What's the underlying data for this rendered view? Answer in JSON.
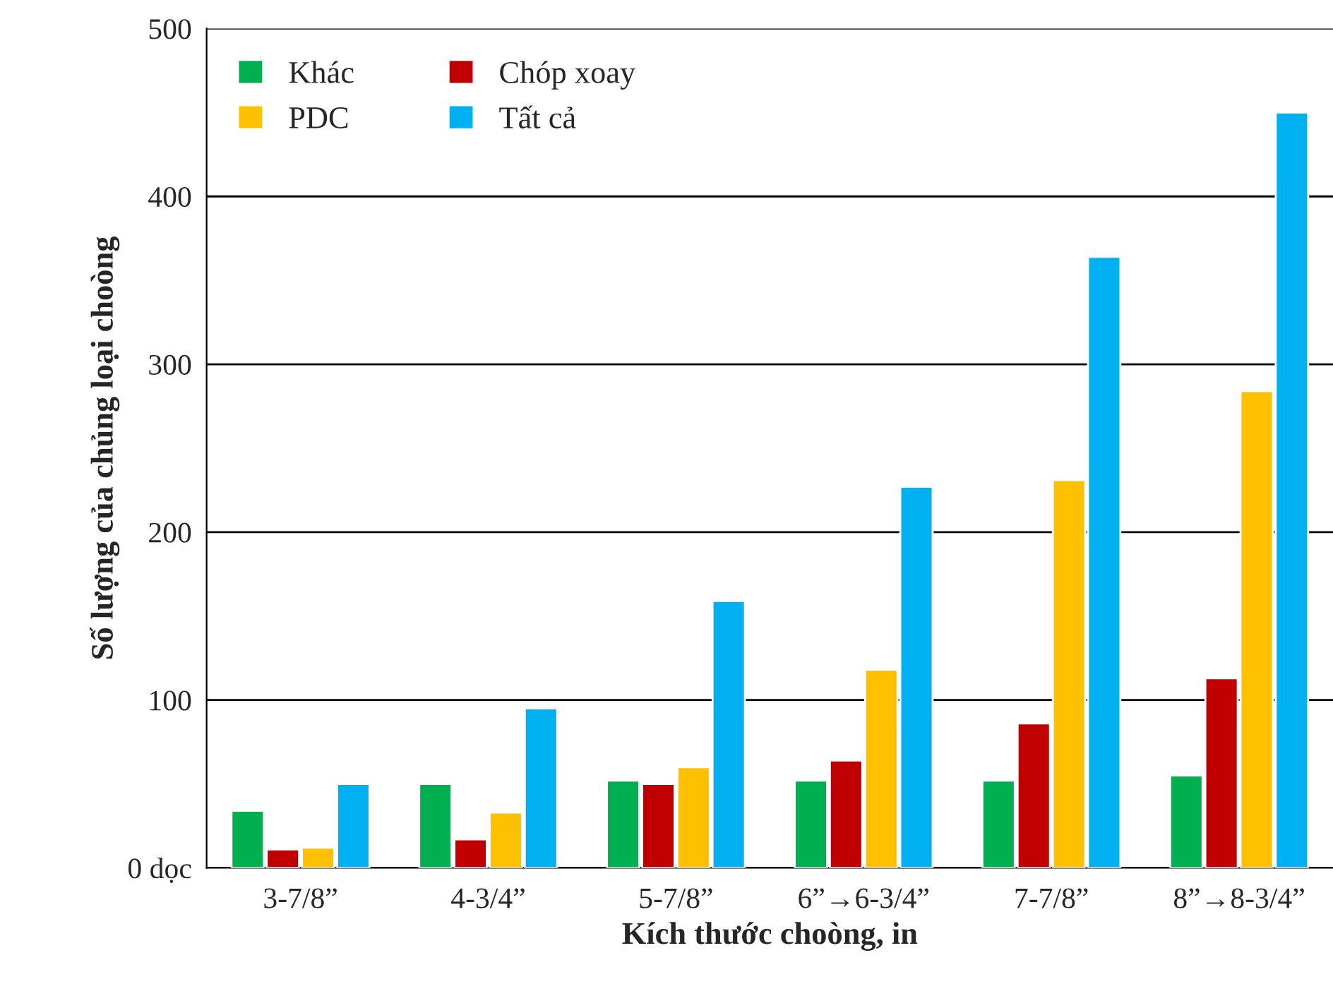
{
  "chart_data": {
    "type": "bar",
    "xlabel": "Kích thước choòng, in",
    "ylabel": "Số lượng của chủng loại choòng",
    "categories": [
      "3-7/8”",
      "4-3/4”",
      "5-7/8”",
      "6”→6-3/4”",
      "7-7/8”",
      "8”→8-3/4”"
    ],
    "series": [
      {
        "name": "Khác",
        "color": "#00b050",
        "values": [
          34,
          50,
          52,
          52,
          52,
          55
        ]
      },
      {
        "name": "Chóp xoay",
        "color": "#c00000",
        "values": [
          11,
          17,
          50,
          64,
          86,
          113
        ]
      },
      {
        "name": "PDC",
        "color": "#ffc000",
        "values": [
          12,
          33,
          60,
          118,
          231,
          284
        ]
      },
      {
        "name": "Tất cả",
        "color": "#00b0f0",
        "values": [
          50,
          95,
          159,
          227,
          364,
          450
        ]
      }
    ],
    "ylim": [
      0,
      500
    ],
    "yticks": [
      {
        "value": 0,
        "label": "0 dọc"
      },
      100,
      200,
      300,
      400,
      500
    ],
    "grid": "y",
    "legend": "top left"
  }
}
